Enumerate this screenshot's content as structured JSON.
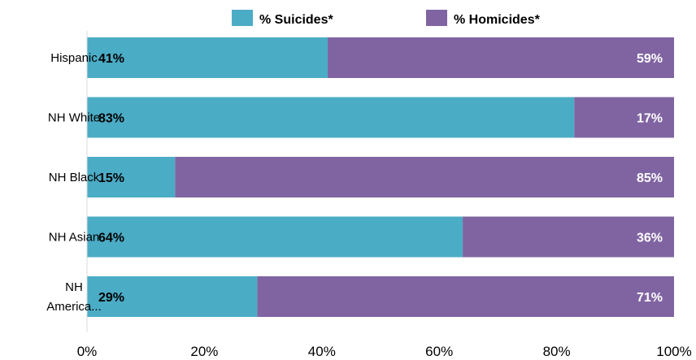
{
  "chart_data": {
    "type": "bar",
    "orientation": "horizontal",
    "stacked": true,
    "categories": [
      "Hispanic",
      "NH White",
      "NH Black",
      "NH Asian",
      "NH America..."
    ],
    "category_label_lines": [
      [
        "Hispanic"
      ],
      [
        "NH White"
      ],
      [
        "NH Black"
      ],
      [
        "NH Asian"
      ],
      [
        "NH",
        "America..."
      ]
    ],
    "series": [
      {
        "name": "% Suicides*",
        "values": [
          41,
          83,
          15,
          64,
          29
        ],
        "labels": [
          "41%",
          "83%",
          "15%",
          "64%",
          "29%"
        ],
        "color": "#4bacc6"
      },
      {
        "name": "% Homicides*",
        "values": [
          59,
          17,
          85,
          36,
          71
        ],
        "labels": [
          "59%",
          "17%",
          "85%",
          "36%",
          "71%"
        ],
        "color": "#8064a2"
      }
    ],
    "xlim": [
      0,
      100
    ],
    "x_ticks": [
      0,
      20,
      40,
      60,
      80,
      100
    ],
    "x_tick_labels": [
      "0%",
      "20%",
      "40%",
      "60%",
      "80%",
      "100%"
    ],
    "grid": false,
    "legend_position": "top",
    "title": "",
    "xlabel": "",
    "ylabel": ""
  }
}
